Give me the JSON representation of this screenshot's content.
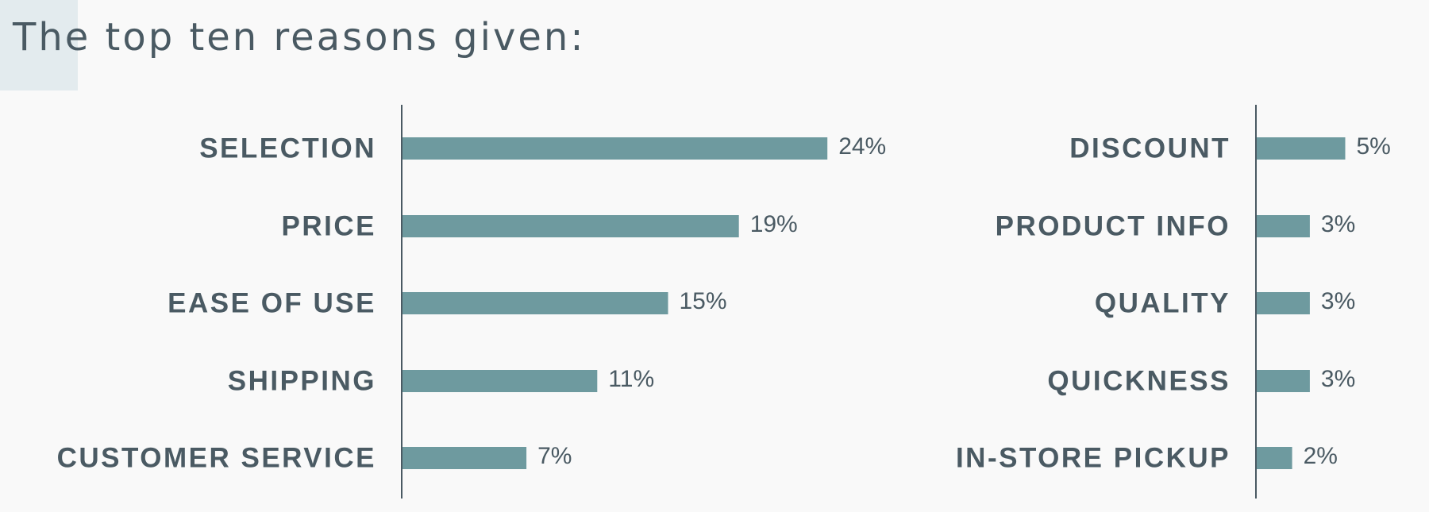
{
  "title": "The top ten reasons given:",
  "chart_data": [
    {
      "type": "bar",
      "orientation": "horizontal",
      "color": "#6e9a9f",
      "categories": [
        "SELECTION",
        "PRICE",
        "EASE OF USE",
        "SHIPPING",
        "CUSTOMER SERVICE"
      ],
      "values": [
        24,
        19,
        15,
        11,
        7
      ],
      "value_labels": [
        "24%",
        "19%",
        "15%",
        "11%",
        "7%"
      ]
    },
    {
      "type": "bar",
      "orientation": "horizontal",
      "color": "#6e9a9f",
      "categories": [
        "DISCOUNT",
        "PRODUCT INFO",
        "QUALITY",
        "QUICKNESS",
        "IN-STORE PICKUP"
      ],
      "values": [
        5,
        3,
        3,
        3,
        2
      ],
      "value_labels": [
        "5%",
        "3%",
        "3%",
        "3%",
        "2%"
      ]
    }
  ]
}
